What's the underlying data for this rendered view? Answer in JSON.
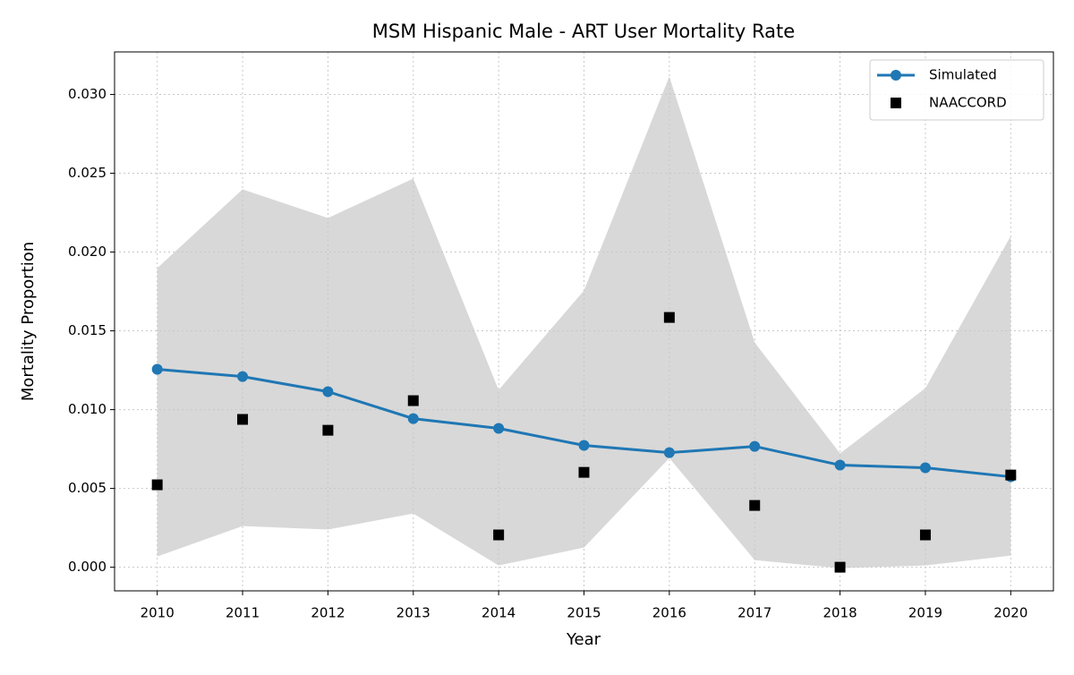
{
  "chart_data": {
    "type": "line",
    "title": "MSM Hispanic Male - ART User Mortality Rate",
    "x_label": "Year",
    "y_label": "Mortality Proportion",
    "x": [
      2010,
      2011,
      2012,
      2013,
      2014,
      2015,
      2016,
      2017,
      2018,
      2019,
      2020
    ],
    "band": {
      "color": "#d8d8d8",
      "upper": [
        0.01898,
        0.02398,
        0.02216,
        0.02466,
        0.01125,
        0.01756,
        0.03114,
        0.01426,
        0.00722,
        0.01136,
        0.02102
      ],
      "lower": [
        0.00068,
        0.00261,
        0.00239,
        0.00341,
        0.00011,
        0.00125,
        0.00693,
        0.00045,
        -6e-05,
        0.00011,
        0.00074
      ]
    },
    "series": [
      {
        "name": "Simulated",
        "color": "#1f77b4",
        "marker": "circle",
        "line": true,
        "values": [
          0.01256,
          0.0121,
          0.01114,
          0.00943,
          0.00881,
          0.00773,
          0.00727,
          0.00767,
          0.00648,
          0.00631,
          0.00574
        ]
      },
      {
        "name": "NAACCORD",
        "color": "#000000",
        "marker": "square",
        "line": false,
        "values": [
          0.00523,
          0.00938,
          0.00869,
          0.01057,
          0.00205,
          0.00602,
          0.01585,
          0.00392,
          0.0,
          0.00205,
          0.00585
        ]
      }
    ],
    "xlim": [
      2009.5,
      2020.5
    ],
    "xticks": [
      2010,
      2011,
      2012,
      2013,
      2014,
      2015,
      2016,
      2017,
      2018,
      2019,
      2020
    ],
    "ylim": [
      -0.0015,
      0.0327
    ],
    "yticks": [
      {
        "value": 0,
        "label": "0.000"
      },
      {
        "value": 0.005,
        "label": "0.005"
      },
      {
        "value": 0.01,
        "label": "0.010"
      },
      {
        "value": 0.015,
        "label": "0.015"
      },
      {
        "value": 0.02,
        "label": "0.020"
      },
      {
        "value": 0.025,
        "label": "0.025"
      },
      {
        "value": 0.03,
        "label": "0.030"
      }
    ],
    "grid": true,
    "legend_position": "upper right"
  }
}
